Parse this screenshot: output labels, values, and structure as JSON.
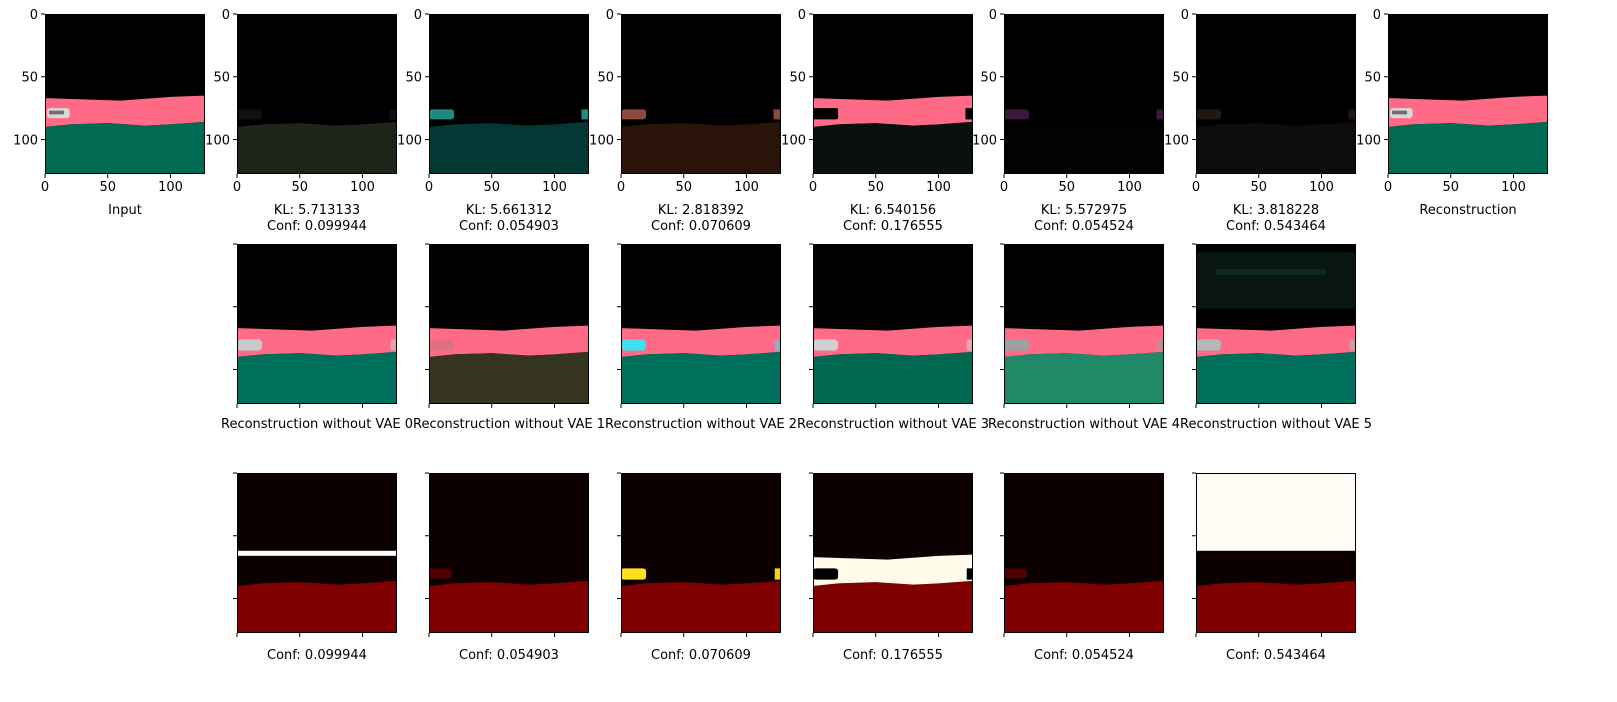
{
  "row1": {
    "tick_labels_x": [
      "0",
      "50",
      "100"
    ],
    "tick_labels_y": [
      "0",
      "50",
      "100"
    ],
    "panels": [
      {
        "kind": "input",
        "caption": [
          "Input"
        ]
      },
      {
        "kind": "latent",
        "tint": "#1e2418",
        "car": "#101010",
        "caption": [
          "KL: 5.713133",
          "Conf: 0.099944"
        ]
      },
      {
        "kind": "latent",
        "tint": "#043834",
        "car": "#1f8a7e",
        "caption": [
          "KL: 5.661312",
          "Conf: 0.054903"
        ]
      },
      {
        "kind": "latent",
        "tint": "#2a140a",
        "car": "#8a4a3c",
        "caption": [
          "KL: 2.818392",
          "Conf: 0.070609"
        ]
      },
      {
        "kind": "latent_road",
        "tint": "#0a100e",
        "caption": [
          "KL: 6.540156",
          "Conf: 0.176555"
        ]
      },
      {
        "kind": "latent",
        "tint": "#020202",
        "car": "#3a1838",
        "caption": [
          "KL: 5.572975",
          "Conf: 0.054524"
        ]
      },
      {
        "kind": "latent",
        "tint": "#0c0d0b",
        "car": "#241612",
        "caption": [
          "KL: 3.818228",
          "Conf: 0.543464"
        ]
      },
      {
        "kind": "input",
        "caption": [
          "Reconstruction"
        ]
      }
    ]
  },
  "row2": {
    "panels": [
      {
        "ground": "#00705c",
        "car": "#c8c8c8",
        "caption": "Reconstruction without VAE 0"
      },
      {
        "ground": "#343420",
        "car": "#e07080",
        "caption": "Reconstruction without VAE 1"
      },
      {
        "ground": "#00705c",
        "car": "#40e0f0",
        "caption": "Reconstruction without VAE 2"
      },
      {
        "ground": "#006850",
        "car": "#d0d0d0",
        "caption": "Reconstruction without VAE 3"
      },
      {
        "ground": "#208a68",
        "car": "#a0a0a0",
        "caption": "Reconstruction without VAE 4"
      },
      {
        "ground": "#00705c",
        "car": "#b8b8b8",
        "caption": "Reconstruction without VAE 5"
      }
    ]
  },
  "row3": {
    "panels": [
      {
        "mode": "stripe",
        "caption": "Conf: 0.099944"
      },
      {
        "mode": "dark",
        "caption": "Conf: 0.054903"
      },
      {
        "mode": "yellow",
        "caption": "Conf: 0.070609"
      },
      {
        "mode": "hot",
        "caption": "Conf: 0.176555"
      },
      {
        "mode": "dark",
        "caption": "Conf: 0.054524"
      },
      {
        "mode": "white_sky",
        "caption": "Conf: 0.543464"
      }
    ]
  },
  "colors": {
    "road": "#ff6b86",
    "ground": "#006a52",
    "sky": "#000000",
    "heat_ground": "#800000",
    "heat_dark": "#0d0000"
  }
}
